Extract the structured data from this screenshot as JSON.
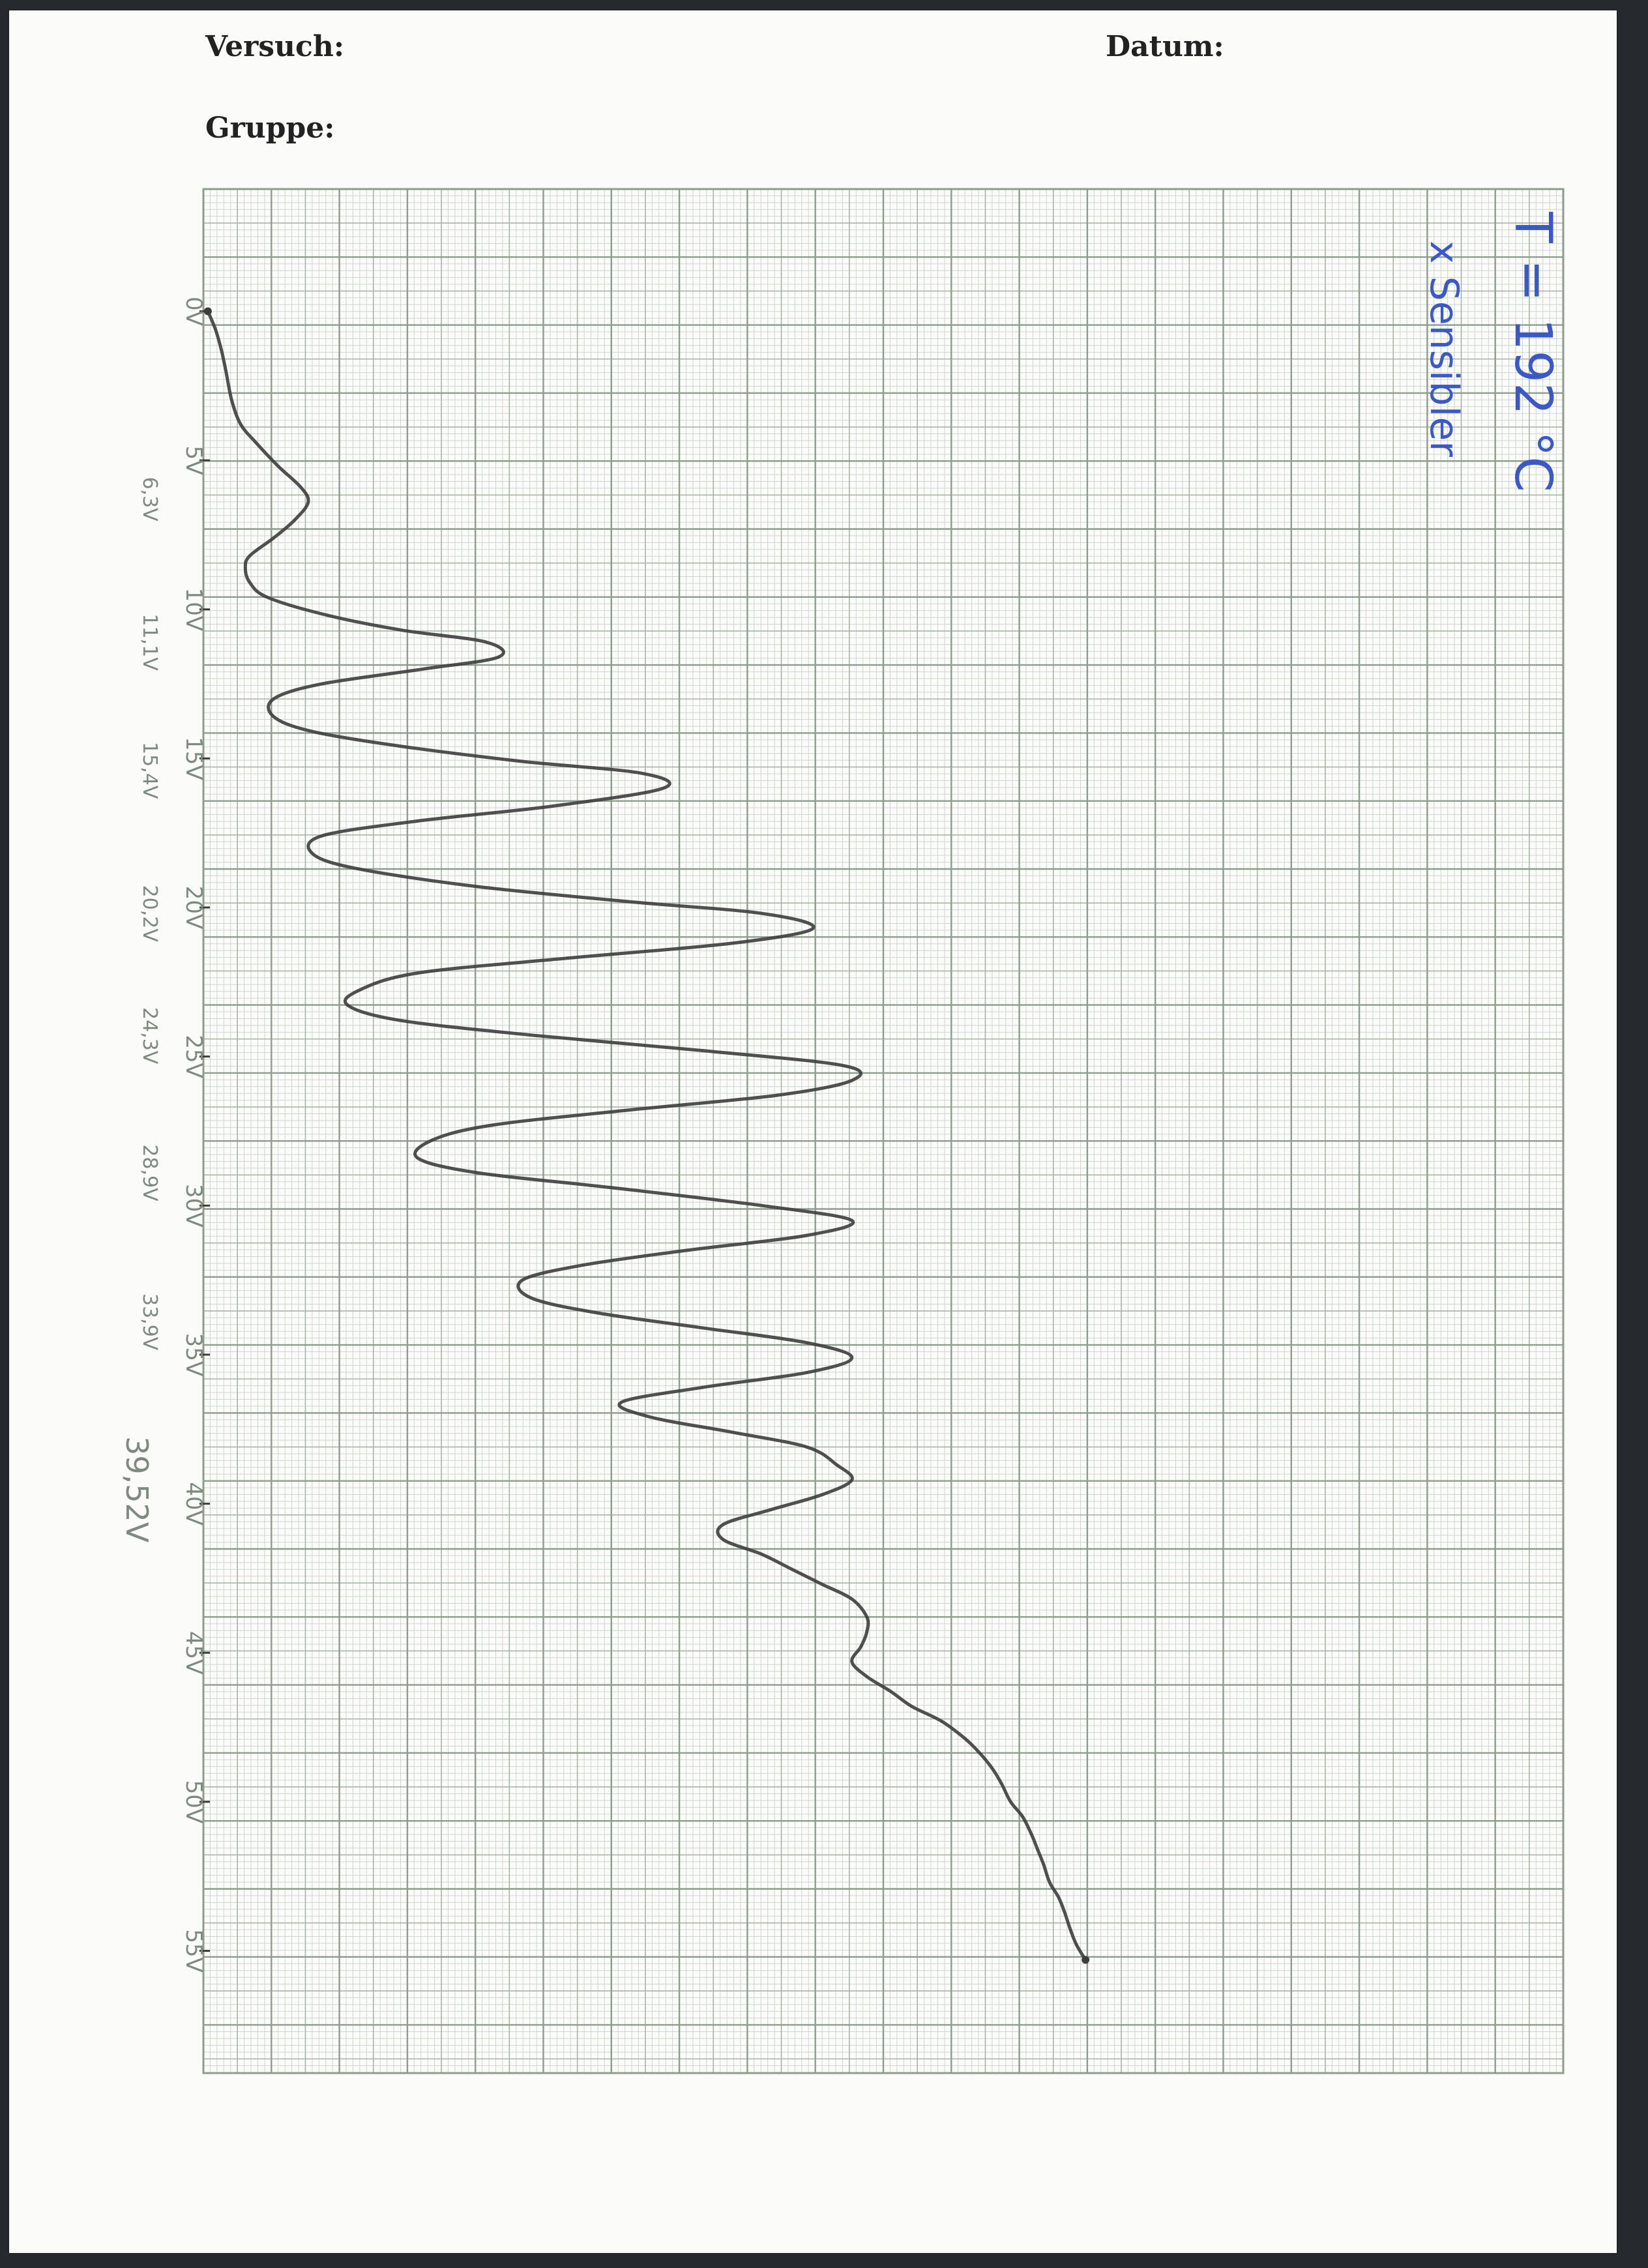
{
  "header": {
    "versuch_label": "Versuch:",
    "datum_label": "Datum:",
    "gruppe_label": "Gruppe:"
  },
  "colors": {
    "paper": "#fbfcfa",
    "grid_major": "#8e9c8c",
    "grid_mid": "#a8b4a6",
    "grid_minor": "#cdd6cb",
    "pencil": "#3d3d3d",
    "pencil_label": "#7f8a7f",
    "ink_blue": "#3b58c8"
  },
  "chart_data": {
    "type": "line",
    "orientation": "vertical",
    "xlabel": "",
    "ylabel": "",
    "x_ticks": [
      "0",
      "5",
      "10",
      "15",
      "20",
      "25",
      "30",
      "35",
      "40",
      "45",
      "50",
      "55"
    ],
    "peak_labels": [
      "6,3V",
      "11,1V",
      "15,4V",
      "20,2V",
      "24,3V",
      "28,9V",
      "33,9V",
      "39,52V"
    ],
    "annotations": [
      "T = 192 °C",
      "x Sensibler"
    ],
    "series": [
      {
        "x": [
          0,
          0.6,
          1.3,
          2.0,
          3.0,
          3.8,
          4.4,
          5.2,
          5.9,
          6.4,
          7.0,
          7.6,
          8.2,
          8.6,
          9.1,
          9.6,
          10.2,
          10.7,
          11.1,
          11.6,
          12.0,
          12.5,
          13.0,
          13.6,
          14.1,
          14.6,
          15.1,
          15.5,
          16.0,
          16.6,
          17.1,
          17.6,
          18.2,
          18.7,
          19.3,
          19.8,
          20.2,
          20.7,
          21.2,
          21.7,
          22.2,
          22.8,
          23.3,
          23.8,
          24.3,
          24.8,
          25.3,
          25.8,
          26.3,
          26.8,
          27.3,
          27.8,
          28.4,
          28.9,
          29.4,
          30.0,
          30.5,
          31.0,
          31.5,
          32.0,
          32.5,
          33.1,
          33.6,
          34.1,
          34.6,
          35.1,
          35.6,
          36.1,
          36.6,
          37.1,
          37.6,
          38.1,
          38.7,
          39.2,
          39.7,
          40.2,
          40.7,
          41.2,
          41.7,
          42.2,
          42.7,
          43.2,
          43.8,
          44.3,
          44.8,
          45.3,
          45.8,
          46.3,
          46.8,
          47.3,
          47.9,
          48.4,
          48.9,
          49.4,
          50.0,
          50.5,
          51.1,
          51.6,
          52.1,
          52.7,
          53.2,
          53.7,
          54.3,
          54.8,
          55.3
        ],
        "y": [
          0.0,
          0.25,
          0.45,
          0.6,
          0.8,
          1.1,
          1.6,
          2.35,
          3.1,
          3.35,
          2.9,
          2.2,
          1.4,
          1.25,
          1.4,
          2.0,
          4.0,
          6.5,
          9.3,
          9.7,
          7.2,
          3.8,
          2.2,
          2.2,
          3.5,
          6.5,
          10.5,
          14.5,
          15.2,
          11.5,
          7.0,
          3.8,
          3.5,
          5.0,
          9.0,
          14.0,
          18.5,
          20.2,
          17.5,
          12.0,
          7.0,
          5.0,
          4.7,
          6.5,
          11.0,
          16.5,
          21.2,
          21.5,
          19.0,
          14.0,
          9.5,
          7.5,
          7.0,
          9.0,
          13.5,
          18.5,
          21.5,
          20.0,
          16.0,
          12.5,
          10.5,
          10.8,
          13.0,
          16.5,
          20.0,
          21.5,
          20.0,
          16.5,
          13.8,
          14.8,
          17.5,
          20.0,
          21.0,
          21.5,
          20.5,
          18.8,
          17.2,
          17.2,
          18.5,
          19.5,
          20.5,
          21.5,
          22.0,
          22.0,
          21.8,
          21.5,
          22.0,
          22.8,
          23.5,
          24.5,
          25.3,
          25.8,
          26.2,
          26.5,
          26.8,
          27.2,
          27.5,
          27.7,
          27.9,
          28.1,
          28.4,
          28.6,
          28.8,
          29.0,
          29.3
        ],
        "y_unit_note": ""
      }
    ],
    "xlim": [
      -4.1,
      59.1
    ],
    "ylim": [
      -0.15,
      45.25
    ],
    "grid": true
  }
}
